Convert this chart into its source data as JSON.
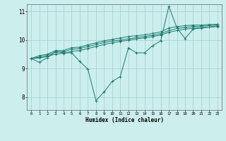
{
  "xlabel": "Humidex (Indice chaleur)",
  "xlim_min": -0.5,
  "xlim_max": 23.5,
  "ylim_min": 7.55,
  "ylim_max": 11.25,
  "yticks": [
    8,
    9,
    10,
    11
  ],
  "xticks": [
    0,
    1,
    2,
    3,
    4,
    5,
    6,
    7,
    8,
    9,
    10,
    11,
    12,
    13,
    14,
    15,
    16,
    17,
    18,
    19,
    20,
    21,
    22,
    23
  ],
  "bg_color": "#cceeed",
  "line_color": "#1a7a70",
  "grid_color": "#a0cecc",
  "series": [
    [
      9.35,
      9.22,
      9.38,
      9.6,
      9.55,
      9.55,
      9.25,
      8.98,
      7.88,
      8.18,
      8.55,
      8.72,
      9.72,
      9.55,
      9.55,
      9.8,
      9.97,
      11.18,
      10.42,
      10.05,
      10.38,
      10.42,
      10.45,
      10.48
    ],
    [
      9.35,
      9.45,
      9.5,
      9.63,
      9.63,
      9.73,
      9.75,
      9.83,
      9.9,
      9.97,
      10.02,
      10.07,
      10.12,
      10.15,
      10.18,
      10.23,
      10.28,
      10.42,
      10.47,
      10.5,
      10.52,
      10.52,
      10.54,
      10.55
    ],
    [
      9.35,
      9.4,
      9.46,
      9.57,
      9.59,
      9.67,
      9.7,
      9.77,
      9.84,
      9.91,
      9.96,
      10.0,
      10.04,
      10.08,
      10.12,
      10.17,
      10.22,
      10.33,
      10.4,
      10.44,
      10.47,
      10.48,
      10.5,
      10.52
    ],
    [
      9.35,
      9.37,
      9.42,
      9.51,
      9.53,
      9.6,
      9.63,
      9.7,
      9.77,
      9.84,
      9.9,
      9.95,
      9.99,
      10.04,
      10.07,
      10.12,
      10.17,
      10.27,
      10.33,
      10.38,
      10.41,
      10.43,
      10.45,
      10.47
    ]
  ]
}
